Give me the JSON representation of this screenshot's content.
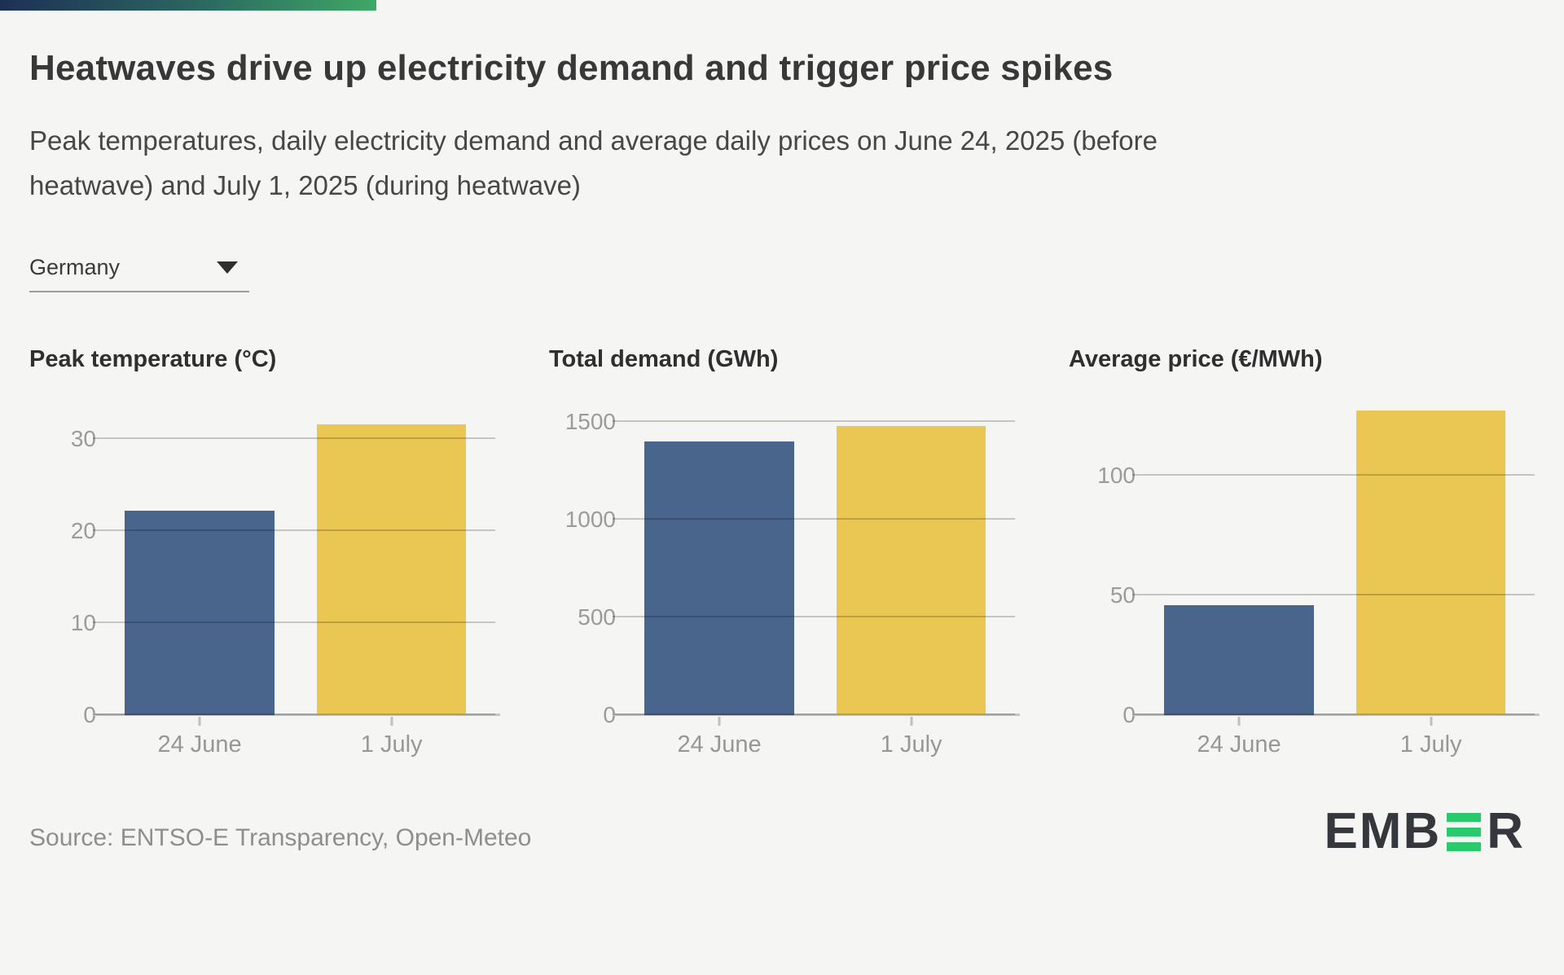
{
  "page": {
    "background": "#f5f5f4"
  },
  "topbar": {
    "gradient_start": "#1e2f55",
    "gradient_end": "#3fa866"
  },
  "header": {
    "title": "Heatwaves drive up electricity demand and trigger price spikes",
    "subtitle": "Peak temperatures, daily electricity demand and average daily prices on June 24, 2025 (before heatwave) and July 1, 2025 (during heatwave)"
  },
  "controls": {
    "country_selector": {
      "value": "Germany",
      "icon": "caret-down"
    }
  },
  "colors": {
    "bar_24_june": "#4a658c",
    "bar_1_july": "#eac752",
    "gridline": "#c9c9c9",
    "tick_label": "#9b9b9b"
  },
  "chart_data": [
    {
      "type": "bar",
      "title": "Peak temperature (°C)",
      "categories": [
        "24 June",
        "1 July"
      ],
      "values": [
        22.2,
        31.6
      ],
      "yticks": [
        0,
        10,
        20,
        30
      ],
      "ylim": [
        0,
        34.5
      ],
      "bar_colors": [
        "#4a658c",
        "#eac752"
      ],
      "grid": true,
      "legend": "none"
    },
    {
      "type": "bar",
      "title": "Total demand (GWh)",
      "categories": [
        "24 June",
        "1 July"
      ],
      "values": [
        1400,
        1480
      ],
      "yticks": [
        0,
        500,
        1000,
        1500
      ],
      "ylim": [
        0,
        1625
      ],
      "bar_colors": [
        "#4a658c",
        "#eac752"
      ],
      "grid": true,
      "legend": "none"
    },
    {
      "type": "bar",
      "title": "Average price (€/MWh)",
      "categories": [
        "24 June",
        "1 July"
      ],
      "values": [
        46,
        127
      ],
      "yticks": [
        0,
        50,
        100
      ],
      "ylim": [
        0,
        132.5
      ],
      "bar_colors": [
        "#4a658c",
        "#eac752"
      ],
      "grid": true,
      "legend": "none"
    }
  ],
  "footer": {
    "source": "Source: ENTSO-E Transparency, Open-Meteo",
    "logo": {
      "text_left": "EMB",
      "text_right": "R",
      "bars_color": "#2bc96e",
      "text_color": "#34383c"
    }
  }
}
